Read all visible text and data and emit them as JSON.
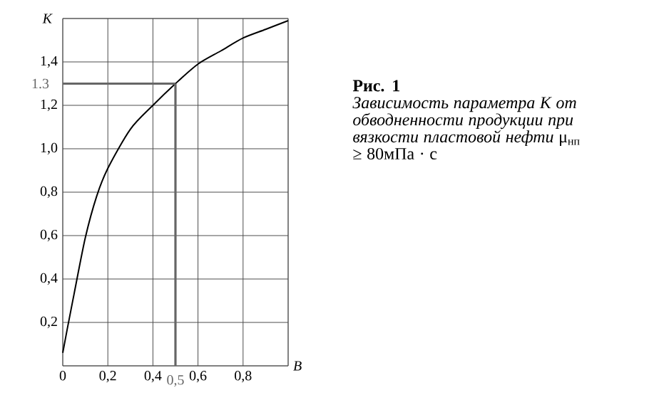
{
  "chart_data": {
    "type": "line",
    "title": "Рис. 1",
    "annotations": [
      "*Зависимость параметра K от обводненности продукции при вязкости пластовой нефти* μ$_{нп}$ ≥ 80мПа · с"
    ],
    "xlabel": "B",
    "ylabel": "K",
    "x": [
      0,
      0.02,
      0.05,
      0.1,
      0.15,
      0.2,
      0.3,
      0.4,
      0.5,
      0.6,
      0.7,
      0.8,
      0.9,
      1.0
    ],
    "series": [
      {
        "color": "#000000",
        "values": [
          0.06,
          0.17,
          0.33,
          0.59,
          0.78,
          0.91,
          1.09,
          1.2,
          1.3,
          1.39,
          1.45,
          1.51,
          1.55,
          1.59
        ]
      }
    ],
    "xlim": [
      0,
      1
    ],
    "ylim": [
      0,
      1.6
    ],
    "xticks": [
      {
        "value": 0,
        "label": "0"
      },
      {
        "value": 0.2,
        "label": "0,2"
      },
      {
        "value": 0.4,
        "label": "0,4"
      },
      {
        "value": 0.6,
        "label": "0,6"
      },
      {
        "value": 0.8,
        "label": "0,8"
      },
      {
        "value": 1.0,
        "label": null
      }
    ],
    "yticks": [
      {
        "value": 0,
        "label": null
      },
      {
        "value": 0.2,
        "label": "0,2"
      },
      {
        "value": 0.4,
        "label": "0,4"
      },
      {
        "value": 0.6,
        "label": "0,6"
      },
      {
        "value": 0.8,
        "label": "0,8"
      },
      {
        "value": 1.0,
        "label": "1,0"
      },
      {
        "value": 1.2,
        "label": "1,2"
      },
      {
        "value": 1.4,
        "label": "1,4"
      },
      {
        "value": 1.6,
        "label": null
      }
    ],
    "grid": true,
    "marker": "none",
    "line_style": "solid",
    "ref_lines": [
      {
        "axis": "x",
        "value": 0.5,
        "label": "0,5",
        "color": "#666666"
      },
      {
        "axis": "y",
        "value": 1.3,
        "label": "1.3",
        "color": "#666666"
      }
    ]
  }
}
